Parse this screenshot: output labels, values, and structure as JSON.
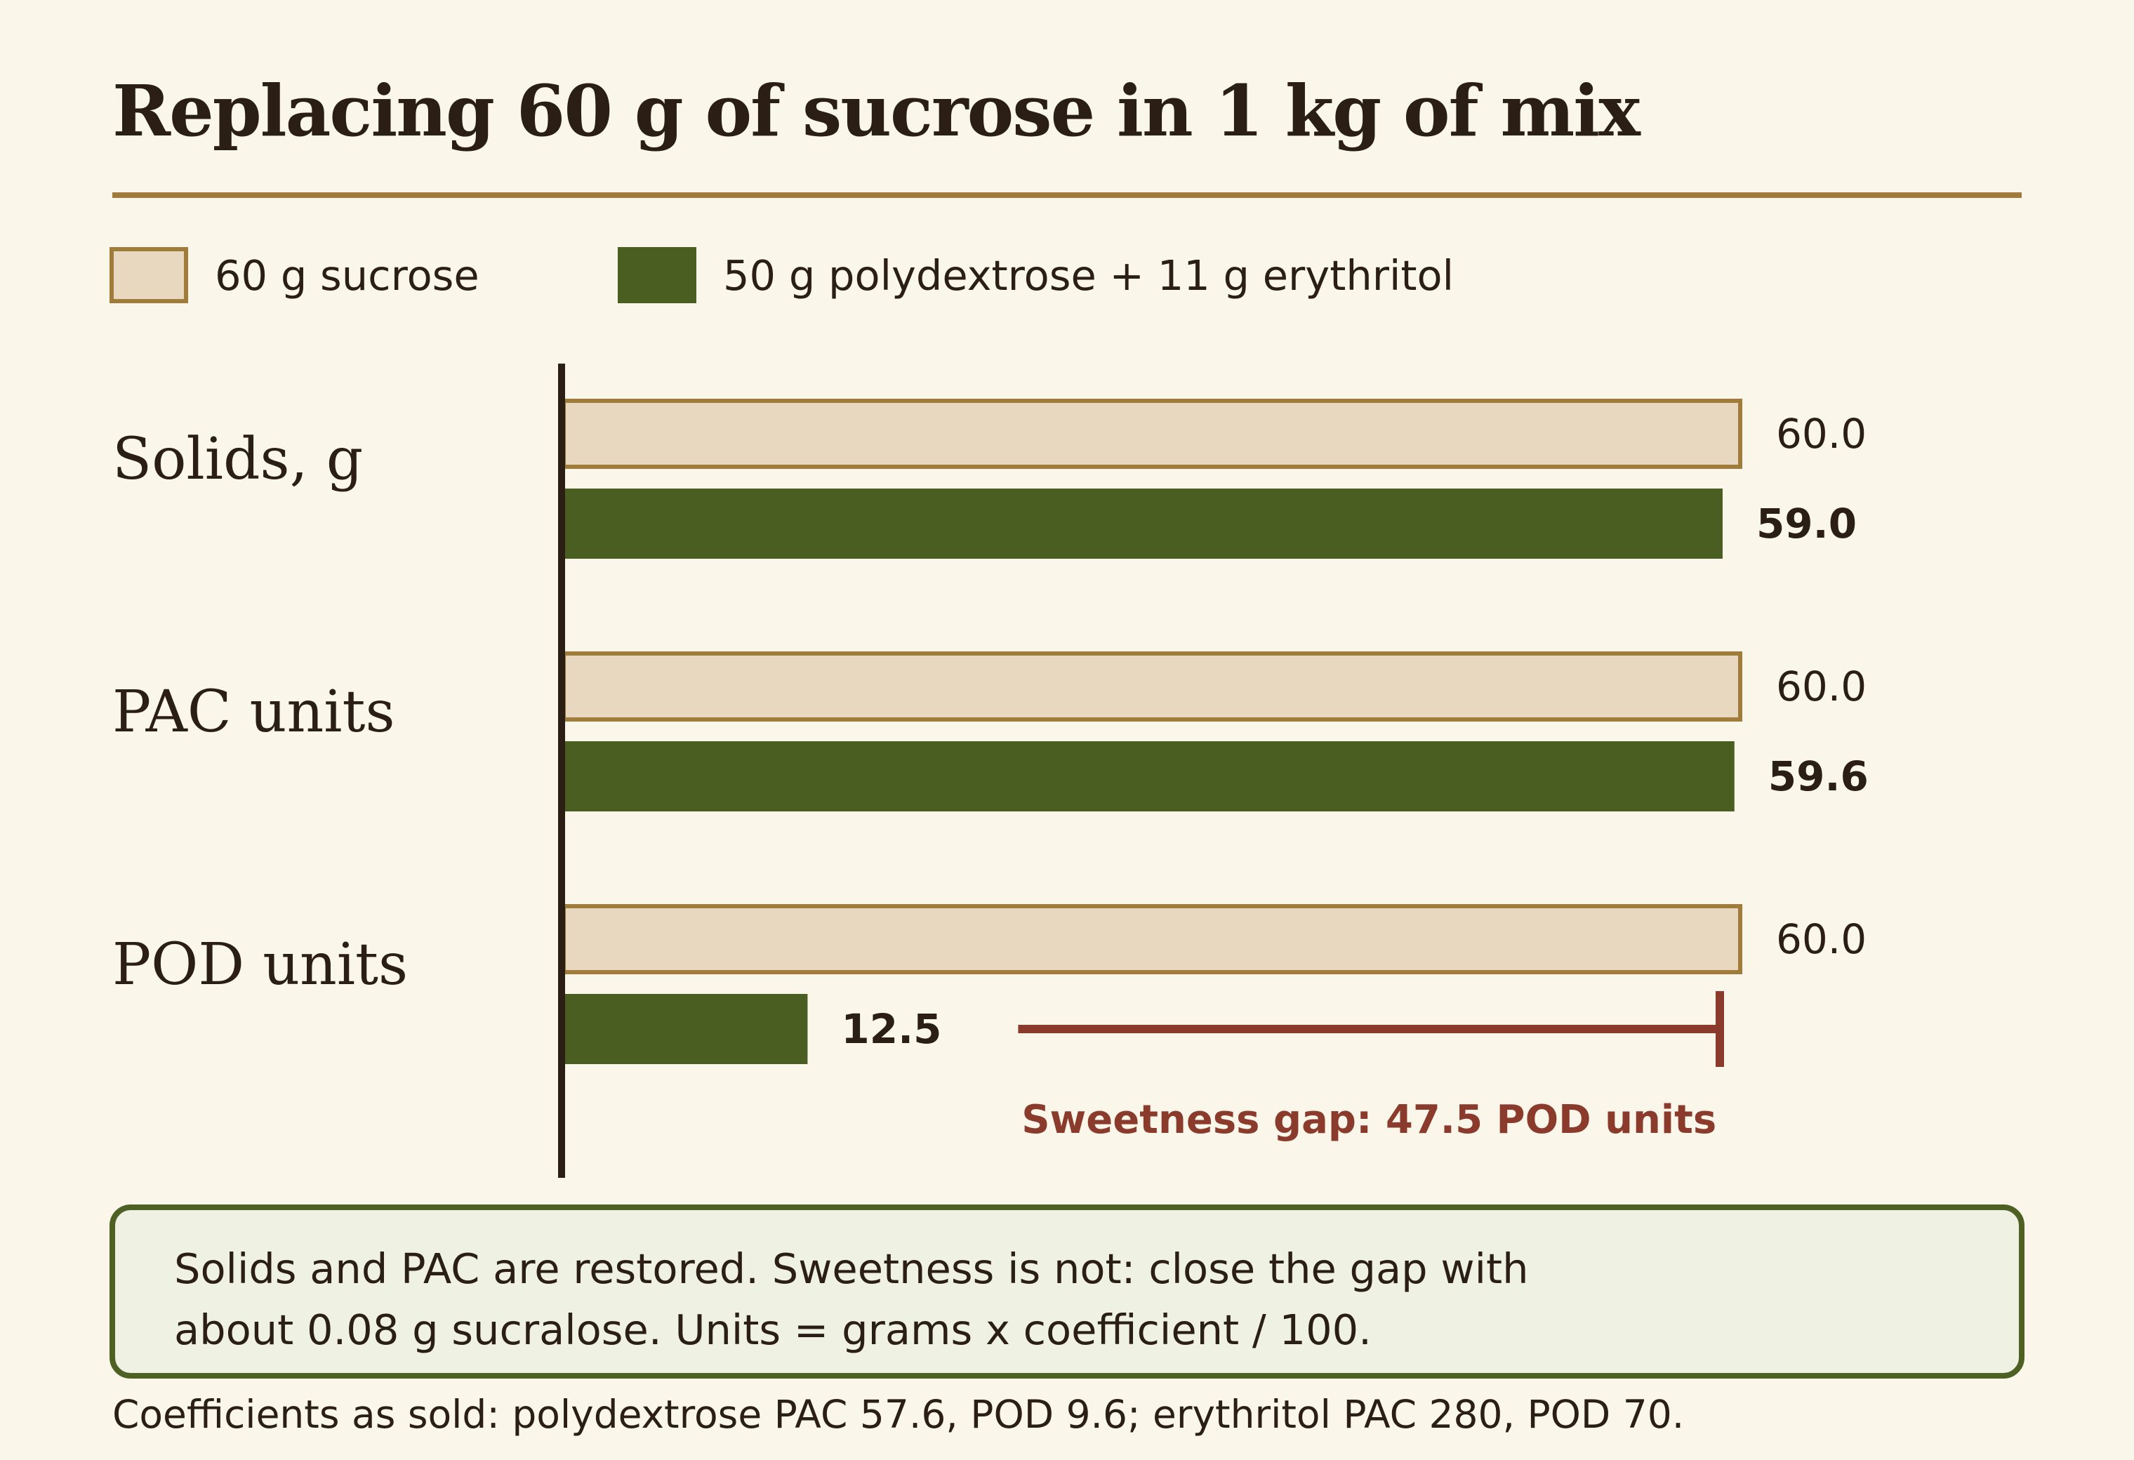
{
  "title": "Replacing 60 g of sucrose in 1 kg of mix",
  "legend": {
    "sucrose": "60 g sucrose",
    "blend": "50 g polydextrose + 11 g erythritol"
  },
  "colors": {
    "sucrose_fill": "#e8d8bf",
    "sucrose_border": "#a07c3c",
    "blend_fill": "#4b5e22",
    "gap_color": "#8b3b2c",
    "axis": "#2b1e14"
  },
  "chart_data": {
    "type": "bar",
    "orientation": "horizontal",
    "categories": [
      "Solids, g",
      "PAC units",
      "POD units"
    ],
    "series": [
      {
        "name": "60 g sucrose",
        "values": [
          60.0,
          60.0,
          60.0
        ],
        "labels": [
          "60.0",
          "60.0",
          "60.0"
        ]
      },
      {
        "name": "50 g polydextrose + 11 g erythritol",
        "values": [
          59.0,
          59.6,
          12.5
        ],
        "labels": [
          "59.0",
          "59.6",
          "12.5"
        ]
      }
    ],
    "xlim": [
      0,
      60
    ],
    "legend_position": "top-left",
    "grid": false,
    "annotation": {
      "text": "Sweetness gap: 47.5 POD units",
      "category": "POD units",
      "from": 12.5,
      "to": 60.0
    }
  },
  "note": {
    "line1": "Solids and PAC are restored. Sweetness is not: close the gap with",
    "line2": "about 0.08 g sucralose. Units = grams x coefficient / 100."
  },
  "footnote": "Coefficients as sold: polydextrose PAC 57.6, POD 9.6; erythritol PAC 280, POD 70."
}
